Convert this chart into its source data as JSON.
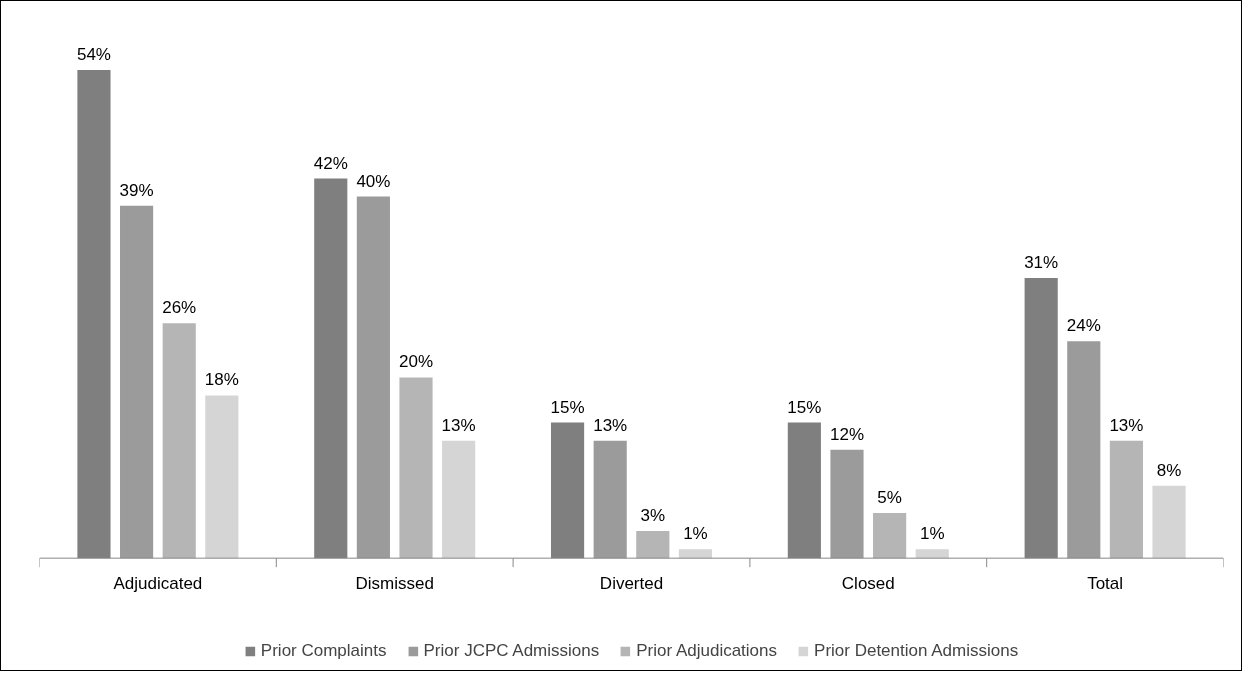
{
  "chart_data": {
    "type": "bar",
    "categories": [
      "Adjudicated",
      "Dismissed",
      "Diverted",
      "Closed",
      "Total"
    ],
    "series": [
      {
        "name": "Prior Complaints",
        "color": "#7f7f7f",
        "values": [
          54,
          42,
          15,
          15,
          31
        ],
        "value_labels": [
          "54%",
          "42%",
          "15%",
          "15%",
          "31%"
        ]
      },
      {
        "name": "Prior JCPC Admissions",
        "color": "#9b9b9b",
        "values": [
          39,
          40,
          13,
          12,
          24
        ],
        "value_labels": [
          "39%",
          "40%",
          "13%",
          "12%",
          "24%"
        ]
      },
      {
        "name": "Prior Adjudications",
        "color": "#b5b5b5",
        "values": [
          26,
          20,
          3,
          5,
          13
        ],
        "value_labels": [
          "26%",
          "20%",
          "3%",
          "5%",
          "13%"
        ]
      },
      {
        "name": "Prior Detention Admissions",
        "color": "#d5d5d5",
        "values": [
          18,
          13,
          1,
          1,
          8
        ],
        "value_labels": [
          "18%",
          "13%",
          "1%",
          "1%",
          "8%"
        ]
      }
    ],
    "legend": "bottom",
    "grid": false
  }
}
